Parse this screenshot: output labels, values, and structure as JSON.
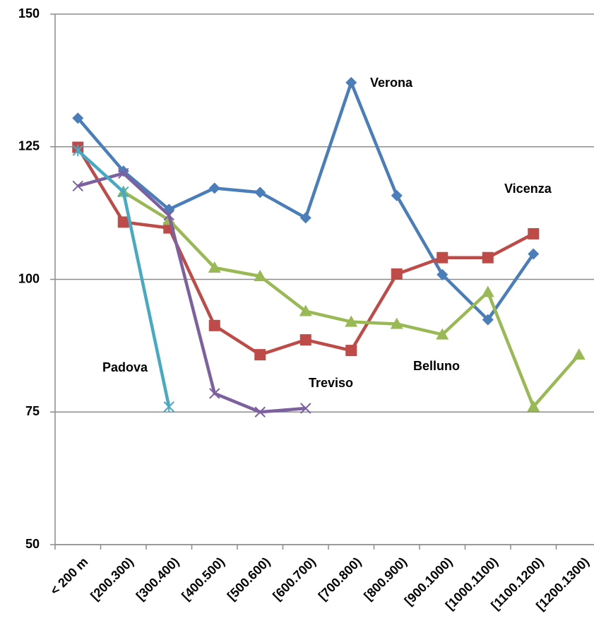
{
  "chart_data": {
    "type": "line",
    "categories": [
      "< 200 m",
      "[200.300)",
      "[300.400)",
      "[400.500)",
      "[500.600)",
      "[600.700)",
      "[700.800)",
      "[800.900)",
      "[900.1000)",
      "[1000.1100)",
      "[1100.1200)",
      "[1200.1300)"
    ],
    "series": [
      {
        "name": "Verona",
        "color": "#4a7ebb",
        "marker": "diamond",
        "values": [
          130.4,
          120.4,
          113.2,
          117.2,
          116.4,
          111.6,
          137.1,
          115.8,
          100.9,
          92.4,
          104.8,
          null
        ]
      },
      {
        "name": "Vicenza",
        "color": "#be4b48",
        "marker": "square",
        "values": [
          124.9,
          110.8,
          109.7,
          91.3,
          85.8,
          88.6,
          86.6,
          101.0,
          104.1,
          104.1,
          108.6,
          null
        ]
      },
      {
        "name": "Belluno",
        "color": "#98b954",
        "marker": "triangle",
        "values": [
          null,
          116.5,
          111.2,
          102.2,
          100.6,
          94.0,
          92.0,
          91.6,
          89.6,
          97.6,
          76.0,
          85.8
        ]
      },
      {
        "name": "Treviso",
        "color": "#7d60a0",
        "marker": "x",
        "values": [
          117.6,
          120.0,
          112.1,
          78.5,
          75.0,
          75.7,
          null,
          null,
          null,
          null,
          null,
          null
        ]
      },
      {
        "name": "Padova",
        "color": "#46aac5",
        "marker": "star",
        "values": [
          124.3,
          116.5,
          76.0,
          null,
          null,
          null,
          null,
          null,
          null,
          null,
          null,
          null
        ]
      }
    ],
    "ylim": [
      50,
      150
    ],
    "yticks": [
      50,
      75,
      100,
      125,
      150
    ],
    "grid": true
  }
}
